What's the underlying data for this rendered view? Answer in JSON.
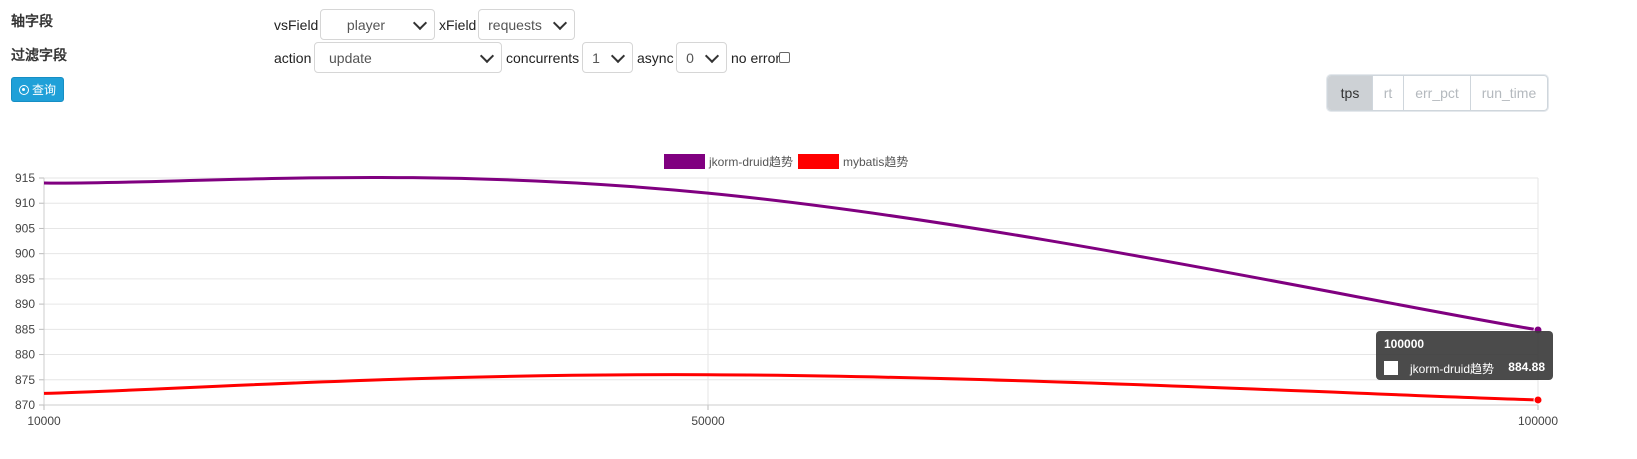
{
  "labels": {
    "axis_fields": "轴字段",
    "filter_fields": "过滤字段"
  },
  "query_button": {
    "label": "查询",
    "icon": "dot-circle-icon"
  },
  "fields": {
    "vsField": {
      "label": "vsField",
      "value": "player"
    },
    "xField": {
      "label": "xField",
      "value": "requests"
    },
    "action": {
      "label": "action",
      "value": "update"
    },
    "concurrents": {
      "label": "concurrents",
      "value": "1"
    },
    "async": {
      "label": "async",
      "value": "0"
    },
    "no_error": {
      "label": "no error",
      "checked": false
    }
  },
  "metrics": {
    "items": [
      "tps",
      "rt",
      "err_pct",
      "run_time"
    ],
    "active": "tps"
  },
  "tooltip": {
    "title": "100000",
    "series": "jkorm-druid趋势",
    "value": "884.88"
  },
  "chart_data": {
    "type": "line",
    "x": [
      10000,
      50000,
      100000
    ],
    "xticks": [
      "10000",
      "50000",
      "100000"
    ],
    "ylim": [
      870,
      915
    ],
    "yticks": [
      "870",
      "875",
      "880",
      "885",
      "890",
      "895",
      "900",
      "905",
      "910",
      "915"
    ],
    "grid": true,
    "legend_position": "top-center",
    "series": [
      {
        "name": "jkorm-druid趋势",
        "color": "#800080",
        "values": [
          914,
          912,
          884.88
        ]
      },
      {
        "name": "mybatis趋势",
        "color": "#ff0000",
        "values": [
          872.3,
          876,
          871
        ]
      }
    ]
  }
}
